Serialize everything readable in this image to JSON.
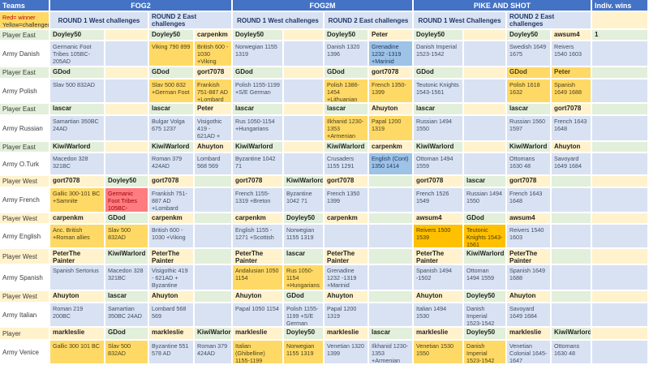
{
  "header": {
    "teams": "Teams",
    "legend_line1": "Red= winner",
    "legend_line2": "Yellow=challenged",
    "indiv_wins": "Indiv. wins",
    "games": [
      {
        "name": "FOG2",
        "round1": "ROUND  1 West challenges",
        "round2": "ROUND  2 East challenges"
      },
      {
        "name": "FOG2M",
        "round1": "ROUND  1 West challenges",
        "round2": "ROUND  2 East challenges"
      },
      {
        "name": "PIKE AND SHOT",
        "round1": "ROUND  1 West Challenges",
        "round2": "ROUND  2 East challenges"
      }
    ]
  },
  "colors": {
    "header_blue": "#4472C4",
    "round_header": "#D9E2F3",
    "east_player_green": "#E2EFDA",
    "west_player_cream": "#FFF2CC",
    "army_light_blue": "#D9E2F3",
    "challenged_gold": "#FFD966",
    "challenged_orange": "#FFC000",
    "winner_red": "#FF7C80",
    "alt_blue": "#9DC3E6"
  },
  "rows": [
    {
      "kind": "player",
      "label": "Player East",
      "label_bg": "g",
      "indiv": {
        "t": "1",
        "bg": "g"
      },
      "cells": [
        {
          "t": "Doyley50",
          "bg": "g"
        },
        {
          "t": "",
          "bg": "c"
        },
        {
          "t": "Doyley50",
          "bg": "g"
        },
        {
          "t": "carpenkm",
          "bg": "c"
        },
        {
          "t": "Doyley50",
          "bg": "g"
        },
        {
          "t": "",
          "bg": "c"
        },
        {
          "t": "Doyley50",
          "bg": "g"
        },
        {
          "t": "Peter",
          "bg": "c"
        },
        {
          "t": "Doyley50",
          "bg": "g"
        },
        {
          "t": "",
          "bg": "c"
        },
        {
          "t": "Doyley50",
          "bg": "g"
        },
        {
          "t": "awsum4",
          "bg": "c"
        }
      ]
    },
    {
      "kind": "army",
      "label": "Army Danish",
      "label_bg": "w",
      "indiv": {
        "t": "",
        "bg": "b"
      },
      "cells": [
        {
          "t": "Germanic Foot Tribes 105BC-205AD",
          "bg": "b"
        },
        {
          "t": "",
          "bg": "b"
        },
        {
          "t": "Viking 790 899",
          "bg": "gold"
        },
        {
          "t": "British 600 - 1030 +Viking",
          "bg": "gold"
        },
        {
          "t": "Norwegian 1155 1319",
          "bg": "b"
        },
        {
          "t": "",
          "bg": "b"
        },
        {
          "t": "Danish 1320 1396",
          "bg": "b"
        },
        {
          "t": "Grenadine 1232 -1319 +Marinid",
          "bg": "blu"
        },
        {
          "t": "Danish Imperial 1523-1542",
          "bg": "b"
        },
        {
          "t": "",
          "bg": "b"
        },
        {
          "t": "Swedish 1649 1675",
          "bg": "b"
        },
        {
          "t": "Reivers 1540 1603",
          "bg": "b"
        }
      ]
    },
    {
      "kind": "player",
      "label": "Player East",
      "label_bg": "g",
      "indiv": {
        "t": "",
        "bg": "g"
      },
      "cells": [
        {
          "t": "GDod",
          "bg": "g"
        },
        {
          "t": "",
          "bg": "c"
        },
        {
          "t": "GDod",
          "bg": "g"
        },
        {
          "t": "gort7078",
          "bg": "c"
        },
        {
          "t": "GDod",
          "bg": "g"
        },
        {
          "t": "",
          "bg": "c"
        },
        {
          "t": "GDod",
          "bg": "g"
        },
        {
          "t": "gort7078",
          "bg": "c"
        },
        {
          "t": "GDod",
          "bg": "g"
        },
        {
          "t": "",
          "bg": "c"
        },
        {
          "t": "GDod",
          "bg": "gold"
        },
        {
          "t": "Peter",
          "bg": "gold"
        }
      ]
    },
    {
      "kind": "army",
      "label": "Army Polish",
      "label_bg": "w",
      "indiv": {
        "t": "",
        "bg": "b"
      },
      "cells": [
        {
          "t": "Slav 500 832AD",
          "bg": "b"
        },
        {
          "t": "",
          "bg": "b"
        },
        {
          "t": "Slav 500 832 +German Foot",
          "bg": "gold"
        },
        {
          "t": "Frankish 751-887 AD +Lombard",
          "bg": "gold"
        },
        {
          "t": "Polish 1155-1199 +S/E German",
          "bg": "b"
        },
        {
          "t": "",
          "bg": "b"
        },
        {
          "t": "Polish 1386-1454 +Lithuanian",
          "bg": "gold"
        },
        {
          "t": "French 1350-1399",
          "bg": "gold"
        },
        {
          "t": "Teutonic Knights 1543-1561",
          "bg": "b"
        },
        {
          "t": "",
          "bg": "b"
        },
        {
          "t": "Polish 1618 1632",
          "bg": "gold"
        },
        {
          "t": "Spanish 1649 1688",
          "bg": "gold"
        }
      ]
    },
    {
      "kind": "player",
      "label": "Player East",
      "label_bg": "g",
      "indiv": {
        "t": "",
        "bg": "g"
      },
      "cells": [
        {
          "t": "lascar",
          "bg": "g"
        },
        {
          "t": "",
          "bg": "c"
        },
        {
          "t": "lascar",
          "bg": "g"
        },
        {
          "t": "Peter",
          "bg": "c"
        },
        {
          "t": "lascar",
          "bg": "g"
        },
        {
          "t": "",
          "bg": "c"
        },
        {
          "t": "lascar",
          "bg": "g"
        },
        {
          "t": "Ahuyton",
          "bg": "c"
        },
        {
          "t": "lascar",
          "bg": "g"
        },
        {
          "t": "",
          "bg": "c"
        },
        {
          "t": "lascar",
          "bg": "g"
        },
        {
          "t": "gort7078",
          "bg": "c"
        }
      ]
    },
    {
      "kind": "army",
      "label": "Army Russian",
      "label_bg": "w",
      "indiv": {
        "t": "",
        "bg": "b"
      },
      "cells": [
        {
          "t": "Samartian 350BC 24AD",
          "bg": "b"
        },
        {
          "t": "",
          "bg": "b"
        },
        {
          "t": "Bulgar Volga 675 1237",
          "bg": "b"
        },
        {
          "t": "Visigothic 419 - 621AD + Byzantine",
          "bg": "b"
        },
        {
          "t": "Rus 1050-1154 +Hungarians",
          "bg": "b"
        },
        {
          "t": "",
          "bg": "b"
        },
        {
          "t": "Ilkhanid 1230-1353 +Armenian",
          "bg": "gold"
        },
        {
          "t": "Papal 1200 1319",
          "bg": "gold"
        },
        {
          "t": "Russian 1494 1550",
          "bg": "b"
        },
        {
          "t": "",
          "bg": "b"
        },
        {
          "t": "Russian 1560 1597",
          "bg": "b"
        },
        {
          "t": "French 1643 1648",
          "bg": "b"
        }
      ]
    },
    {
      "kind": "player",
      "label": "Player East",
      "label_bg": "g",
      "indiv": {
        "t": "",
        "bg": "g"
      },
      "cells": [
        {
          "t": "KiwiWarlord",
          "bg": "g"
        },
        {
          "t": "",
          "bg": "c"
        },
        {
          "t": "KiwiWarlord",
          "bg": "g"
        },
        {
          "t": "Ahuyton",
          "bg": "c"
        },
        {
          "t": "KiwiWarlord",
          "bg": "g"
        },
        {
          "t": "",
          "bg": "c"
        },
        {
          "t": "KiwiWarlord",
          "bg": "g"
        },
        {
          "t": "carpenkm",
          "bg": "c"
        },
        {
          "t": "KiwiWarlord",
          "bg": "g"
        },
        {
          "t": "",
          "bg": "c"
        },
        {
          "t": "KiwiWarlord",
          "bg": "g"
        },
        {
          "t": "Ahuyton",
          "bg": "c"
        }
      ]
    },
    {
      "kind": "army",
      "label": "Army O.Turk",
      "label_bg": "w",
      "indiv": {
        "t": "",
        "bg": "b"
      },
      "cells": [
        {
          "t": "Macedon 328 321BC",
          "bg": "b"
        },
        {
          "t": "",
          "bg": "b"
        },
        {
          "t": "Roman 379 424AD",
          "bg": "b"
        },
        {
          "t": "Lombard 568 569",
          "bg": "b"
        },
        {
          "t": "Byzantine 1042 71",
          "bg": "b"
        },
        {
          "t": "",
          "bg": "b"
        },
        {
          "t": "Crusaders 1155 1291",
          "bg": "b"
        },
        {
          "t": "English (Cont) 1350 1414",
          "bg": "blu"
        },
        {
          "t": "Ottoman 1494 1559",
          "bg": "b"
        },
        {
          "t": "",
          "bg": "b"
        },
        {
          "t": "Ottomans 1630 48",
          "bg": "b"
        },
        {
          "t": "Savoyard 1649 1684",
          "bg": "b"
        }
      ]
    },
    {
      "kind": "player",
      "label": "Player West",
      "label_bg": "c",
      "indiv": {
        "t": "",
        "bg": "c"
      },
      "cells": [
        {
          "t": "gort7078",
          "bg": "c"
        },
        {
          "t": "Doyley50",
          "bg": "g"
        },
        {
          "t": "gort7078",
          "bg": "c"
        },
        {
          "t": "",
          "bg": "g"
        },
        {
          "t": "gort7078",
          "bg": "c"
        },
        {
          "t": "KiwiWarlord",
          "bg": "g"
        },
        {
          "t": "gort7078",
          "bg": "c"
        },
        {
          "t": "",
          "bg": "g"
        },
        {
          "t": "gort7078",
          "bg": "c"
        },
        {
          "t": "lascar",
          "bg": "g"
        },
        {
          "t": "gort7078",
          "bg": "c"
        },
        {
          "t": "",
          "bg": "g"
        }
      ]
    },
    {
      "kind": "army",
      "label": "Army French",
      "label_bg": "w",
      "indiv": {
        "t": "",
        "bg": "b"
      },
      "cells": [
        {
          "t": "Gallic 300-101 BC +Samnite",
          "bg": "gold"
        },
        {
          "t": "Germanic Foot Tribes 105BC-205AD",
          "bg": "red"
        },
        {
          "t": "Frankish 751-887 AD +Lombard",
          "bg": "b"
        },
        {
          "t": "",
          "bg": "b"
        },
        {
          "t": "French 1155-1319 +Breton",
          "bg": "b"
        },
        {
          "t": "Byzantine 1042 71",
          "bg": "b"
        },
        {
          "t": "French 1350 1399",
          "bg": "b"
        },
        {
          "t": "",
          "bg": "b"
        },
        {
          "t": "French 1526 1549",
          "bg": "b"
        },
        {
          "t": "Russian 1494 1550",
          "bg": "b"
        },
        {
          "t": "French 1643 1648",
          "bg": "b"
        },
        {
          "t": "",
          "bg": "b"
        }
      ]
    },
    {
      "kind": "player",
      "label": "Player West",
      "label_bg": "c",
      "indiv": {
        "t": "",
        "bg": "c"
      },
      "cells": [
        {
          "t": "carpenkm",
          "bg": "c"
        },
        {
          "t": "GDod",
          "bg": "g"
        },
        {
          "t": "carpenkm",
          "bg": "c"
        },
        {
          "t": "",
          "bg": "g"
        },
        {
          "t": "carpenkm",
          "bg": "c"
        },
        {
          "t": "Doyley50",
          "bg": "g"
        },
        {
          "t": "carpenkm",
          "bg": "c"
        },
        {
          "t": "",
          "bg": "g"
        },
        {
          "t": "awsum4",
          "bg": "c"
        },
        {
          "t": "GDod",
          "bg": "g"
        },
        {
          "t": "awsum4",
          "bg": "c"
        },
        {
          "t": "",
          "bg": "g"
        }
      ]
    },
    {
      "kind": "army",
      "label": "Army English",
      "label_bg": "w",
      "indiv": {
        "t": "",
        "bg": "b"
      },
      "cells": [
        {
          "t": "Anc. British +Roman allies",
          "bg": "gold"
        },
        {
          "t": "Slav 500 832AD",
          "bg": "gold"
        },
        {
          "t": "British 600 - 1030 +Viking",
          "bg": "b"
        },
        {
          "t": "",
          "bg": "b"
        },
        {
          "t": "English 1155 - 1271 +Scottish",
          "bg": "b"
        },
        {
          "t": "Norwegian 1155 1319",
          "bg": "b"
        },
        {
          "t": "",
          "bg": "b"
        },
        {
          "t": "",
          "bg": "b"
        },
        {
          "t": "Reivers 1500 1539",
          "bg": "org"
        },
        {
          "t": "Teutonic Knights 1543-1561",
          "bg": "org"
        },
        {
          "t": "Reivers 1540 1603",
          "bg": "b"
        },
        {
          "t": "",
          "bg": "b"
        }
      ]
    },
    {
      "kind": "player",
      "label": "Player West",
      "label_bg": "c",
      "indiv": {
        "t": "",
        "bg": "c"
      },
      "cells": [
        {
          "t": "PeterThe Painter",
          "bg": "c"
        },
        {
          "t": "KiwiWarlord",
          "bg": "g"
        },
        {
          "t": "PeterThe Painter",
          "bg": "c"
        },
        {
          "t": "",
          "bg": "g"
        },
        {
          "t": "PeterThe Painter",
          "bg": "c"
        },
        {
          "t": "lascar",
          "bg": "g"
        },
        {
          "t": "PeterThe Painter",
          "bg": "c"
        },
        {
          "t": "",
          "bg": "g"
        },
        {
          "t": "PeterThe Painter",
          "bg": "c"
        },
        {
          "t": "KiwiWarlord",
          "bg": "g"
        },
        {
          "t": "PeterThe Painter",
          "bg": "c"
        },
        {
          "t": "",
          "bg": "g"
        }
      ]
    },
    {
      "kind": "army",
      "label": "Army Spanish",
      "label_bg": "w",
      "indiv": {
        "t": "",
        "bg": "b"
      },
      "cells": [
        {
          "t": "Spanish Sertorius",
          "bg": "b"
        },
        {
          "t": "Macedon 328 321BC",
          "bg": "b"
        },
        {
          "t": "Visigothic 419 - 621AD + Byzantine",
          "bg": "b"
        },
        {
          "t": "",
          "bg": "b"
        },
        {
          "t": "Andalusian 1050 1154",
          "bg": "gold"
        },
        {
          "t": "Rus 1050-1154 +Hungarians",
          "bg": "gold"
        },
        {
          "t": "Grenadine 1232 -1319 +Marinid",
          "bg": "b"
        },
        {
          "t": "",
          "bg": "b"
        },
        {
          "t": "Spanish 1494 -1502",
          "bg": "b"
        },
        {
          "t": "Ottoman 1494 1559",
          "bg": "b"
        },
        {
          "t": "Spanish 1649 1688",
          "bg": "b"
        },
        {
          "t": "",
          "bg": "b"
        }
      ]
    },
    {
      "kind": "player",
      "label": "Player West",
      "label_bg": "c",
      "indiv": {
        "t": "",
        "bg": "c"
      },
      "cells": [
        {
          "t": "Ahuyton",
          "bg": "c"
        },
        {
          "t": "lascar",
          "bg": "g"
        },
        {
          "t": "Ahuyton",
          "bg": "c"
        },
        {
          "t": "",
          "bg": "g"
        },
        {
          "t": "Ahuyton",
          "bg": "c"
        },
        {
          "t": "GDod",
          "bg": "g"
        },
        {
          "t": "Ahuyton",
          "bg": "c"
        },
        {
          "t": "",
          "bg": "g"
        },
        {
          "t": "Ahuyton",
          "bg": "c"
        },
        {
          "t": "Doyley50",
          "bg": "g"
        },
        {
          "t": "Ahuyton",
          "bg": "c"
        },
        {
          "t": "",
          "bg": "g"
        }
      ]
    },
    {
      "kind": "army",
      "label": "Army Italian",
      "label_bg": "w",
      "indiv": {
        "t": "",
        "bg": "b"
      },
      "cells": [
        {
          "t": "Roman 219 200BC",
          "bg": "b"
        },
        {
          "t": "Samartian 350BC 24AD",
          "bg": "b"
        },
        {
          "t": "Lombard 568 569",
          "bg": "b"
        },
        {
          "t": "",
          "bg": "b"
        },
        {
          "t": "Papal 1050 1154",
          "bg": "b"
        },
        {
          "t": "Polish 1155-1199 +S/E German",
          "bg": "b"
        },
        {
          "t": "Papal 1200 1319",
          "bg": "b"
        },
        {
          "t": "",
          "bg": "b"
        },
        {
          "t": "Italian 1494 1530",
          "bg": "b"
        },
        {
          "t": "Danish Imperial 1523-1542",
          "bg": "b"
        },
        {
          "t": "Savoyard 1649 1684",
          "bg": "b"
        },
        {
          "t": "",
          "bg": "b"
        }
      ]
    },
    {
      "kind": "player",
      "label": "Player",
      "label_bg": "c",
      "indiv": {
        "t": "",
        "bg": "c"
      },
      "cells": [
        {
          "t": "markleslie",
          "bg": "c"
        },
        {
          "t": "GDod",
          "bg": "g"
        },
        {
          "t": "markleslie",
          "bg": "c"
        },
        {
          "t": "KiwiWarlord",
          "bg": "g"
        },
        {
          "t": "markleslie",
          "bg": "c"
        },
        {
          "t": "Doyley50",
          "bg": "g"
        },
        {
          "t": "markleslie",
          "bg": "c"
        },
        {
          "t": "lascar",
          "bg": "g"
        },
        {
          "t": "markleslie",
          "bg": "c"
        },
        {
          "t": "Doyley50",
          "bg": "g"
        },
        {
          "t": "markleslie",
          "bg": "c"
        },
        {
          "t": "KiwiWarlord",
          "bg": "g"
        }
      ]
    },
    {
      "kind": "army",
      "label": "Army Venice",
      "label_bg": "w",
      "indiv": {
        "t": "",
        "bg": "b"
      },
      "cells": [
        {
          "t": "Gallic 300 101 BC",
          "bg": "gold"
        },
        {
          "t": "Slav 500 832AD",
          "bg": "gold"
        },
        {
          "t": "Byzantine 551 578 AD",
          "bg": "b"
        },
        {
          "t": "Roman 379 424AD",
          "bg": "b"
        },
        {
          "t": "Italian (Ghibelline) 1155-1199",
          "bg": "gold"
        },
        {
          "t": "Norwegian 1155 1319",
          "bg": "gold"
        },
        {
          "t": "Venetian 1320 1399",
          "bg": "b"
        },
        {
          "t": "Ilkhanid 1230-1353 +Armenian",
          "bg": "b"
        },
        {
          "t": "Venetian 1530 1550",
          "bg": "gold"
        },
        {
          "t": "Danish Imperial 1523-1542",
          "bg": "gold"
        },
        {
          "t": "Venetian Colonial 1645-1647",
          "bg": "b"
        },
        {
          "t": "Ottomans 1630 48",
          "bg": "b"
        }
      ]
    }
  ]
}
